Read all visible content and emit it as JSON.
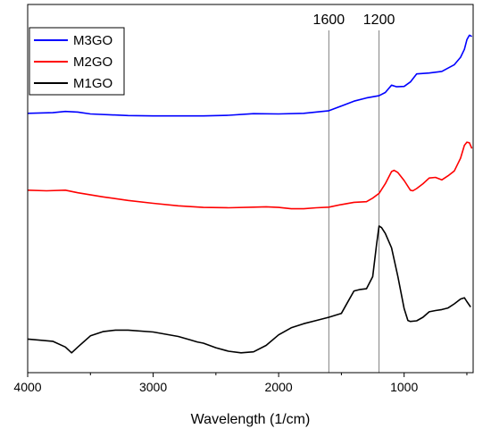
{
  "chart_data": {
    "type": "line",
    "title": "",
    "xlabel": "Wavelength (1/cm)",
    "ylabel": "",
    "xlim": [
      4000,
      450
    ],
    "x_reversed": true,
    "x_ticks": [
      4000,
      3000,
      2000,
      1000
    ],
    "x_tick_labels": [
      "4000",
      "3000",
      "2000",
      "1000"
    ],
    "y_ticks_shown": false,
    "grid": false,
    "legend_position": "top-left",
    "reference_lines": [
      {
        "x": 1600,
        "label": "1600",
        "color": "#808080"
      },
      {
        "x": 1200,
        "label": "1200",
        "color": "#808080"
      }
    ],
    "series": [
      {
        "name": "M3GO",
        "color": "#0000ff",
        "points": [
          [
            4000,
            76
          ],
          [
            3800,
            76.2
          ],
          [
            3700,
            76.6
          ],
          [
            3600,
            76.4
          ],
          [
            3500,
            75.8
          ],
          [
            3200,
            75.3
          ],
          [
            3000,
            75.2
          ],
          [
            2600,
            75.2
          ],
          [
            2400,
            75.4
          ],
          [
            2200,
            75.9
          ],
          [
            2000,
            75.8
          ],
          [
            1800,
            76
          ],
          [
            1600,
            76.8
          ],
          [
            1500,
            78.3
          ],
          [
            1400,
            79.8
          ],
          [
            1300,
            80.8
          ],
          [
            1200,
            81.5
          ],
          [
            1150,
            82.5
          ],
          [
            1100,
            84.8
          ],
          [
            1060,
            84.3
          ],
          [
            1000,
            84.4
          ],
          [
            950,
            85.8
          ],
          [
            900,
            88.3
          ],
          [
            800,
            88.6
          ],
          [
            700,
            89.1
          ],
          [
            600,
            91.2
          ],
          [
            550,
            93.5
          ],
          [
            520,
            96
          ],
          [
            500,
            99
          ],
          [
            480,
            100.4
          ],
          [
            460,
            100
          ]
        ]
      },
      {
        "name": "M2GO",
        "color": "#ff0000",
        "points": [
          [
            4000,
            52
          ],
          [
            3850,
            51.8
          ],
          [
            3700,
            52
          ],
          [
            3600,
            51.2
          ],
          [
            3400,
            49.9
          ],
          [
            3200,
            48.8
          ],
          [
            3000,
            47.9
          ],
          [
            2800,
            47.1
          ],
          [
            2600,
            46.6
          ],
          [
            2400,
            46.5
          ],
          [
            2200,
            46.7
          ],
          [
            2100,
            46.8
          ],
          [
            2000,
            46.6
          ],
          [
            1900,
            46.2
          ],
          [
            1800,
            46.2
          ],
          [
            1700,
            46.5
          ],
          [
            1600,
            46.7
          ],
          [
            1500,
            47.5
          ],
          [
            1400,
            48.2
          ],
          [
            1300,
            48.4
          ],
          [
            1250,
            49.5
          ],
          [
            1200,
            51
          ],
          [
            1150,
            54
          ],
          [
            1100,
            57.8
          ],
          [
            1080,
            58.2
          ],
          [
            1050,
            57.5
          ],
          [
            1000,
            55
          ],
          [
            950,
            52
          ],
          [
            930,
            51.8
          ],
          [
            900,
            52.5
          ],
          [
            850,
            54
          ],
          [
            800,
            55.8
          ],
          [
            750,
            56
          ],
          [
            700,
            55.2
          ],
          [
            650,
            56.5
          ],
          [
            600,
            58
          ],
          [
            550,
            62
          ],
          [
            520,
            66
          ],
          [
            500,
            67
          ],
          [
            480,
            66.8
          ],
          [
            460,
            65
          ]
        ]
      },
      {
        "name": "M1GO",
        "color": "#000000",
        "points": [
          [
            4000,
            5.5
          ],
          [
            3800,
            4.8
          ],
          [
            3700,
            3
          ],
          [
            3650,
            1.2
          ],
          [
            3600,
            3
          ],
          [
            3500,
            6.5
          ],
          [
            3400,
            7.8
          ],
          [
            3300,
            8.3
          ],
          [
            3200,
            8.3
          ],
          [
            3000,
            7.7
          ],
          [
            2800,
            6.3
          ],
          [
            2700,
            5.2
          ],
          [
            2650,
            4.6
          ],
          [
            2600,
            4.2
          ],
          [
            2500,
            2.8
          ],
          [
            2400,
            1.7
          ],
          [
            2300,
            1.2
          ],
          [
            2200,
            1.5
          ],
          [
            2100,
            3.5
          ],
          [
            2000,
            6.8
          ],
          [
            1900,
            9
          ],
          [
            1800,
            10.3
          ],
          [
            1700,
            11.3
          ],
          [
            1600,
            12.3
          ],
          [
            1500,
            13.5
          ],
          [
            1450,
            17
          ],
          [
            1400,
            20.5
          ],
          [
            1350,
            21
          ],
          [
            1300,
            21.2
          ],
          [
            1250,
            25
          ],
          [
            1220,
            35
          ],
          [
            1200,
            40.8
          ],
          [
            1180,
            40.3
          ],
          [
            1150,
            38.5
          ],
          [
            1100,
            34
          ],
          [
            1050,
            25
          ],
          [
            1000,
            15
          ],
          [
            970,
            11.3
          ],
          [
            950,
            11
          ],
          [
            900,
            11.2
          ],
          [
            850,
            12.3
          ],
          [
            800,
            14
          ],
          [
            750,
            14.4
          ],
          [
            700,
            14.7
          ],
          [
            650,
            15.2
          ],
          [
            600,
            16.5
          ],
          [
            550,
            18
          ],
          [
            520,
            18.4
          ],
          [
            500,
            17.2
          ],
          [
            470,
            15.5
          ]
        ]
      }
    ]
  }
}
